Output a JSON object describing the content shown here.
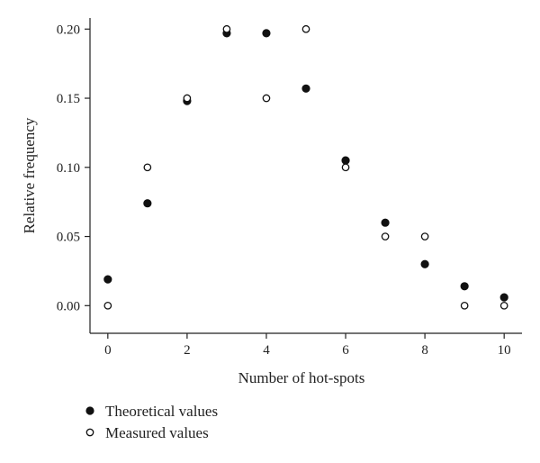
{
  "chart_data": {
    "type": "scatter",
    "title": "",
    "xlabel": "Number of hot-spots",
    "ylabel": "Relative frequency",
    "xlim": [
      -0.45,
      10.45
    ],
    "ylim": [
      -0.02,
      0.208
    ],
    "xticks": [
      0,
      2,
      4,
      6,
      8,
      10
    ],
    "yticks": [
      0.0,
      0.05,
      0.1,
      0.15,
      0.2
    ],
    "xtick_labels": [
      "0",
      "2",
      "4",
      "6",
      "8",
      "10"
    ],
    "ytick_labels": [
      "0.00",
      "0.05",
      "0.10",
      "0.15",
      "0.20"
    ],
    "grid": false,
    "legend_position": "bottom-left",
    "series": [
      {
        "name": "Theoretical values",
        "marker": "filled-circle",
        "color": "#111111",
        "x": [
          0,
          1,
          2,
          3,
          4,
          5,
          6,
          7,
          8,
          9,
          10
        ],
        "y": [
          0.019,
          0.074,
          0.148,
          0.197,
          0.197,
          0.157,
          0.105,
          0.06,
          0.03,
          0.014,
          0.006
        ]
      },
      {
        "name": "Measured values",
        "marker": "open-circle",
        "color": "#111111",
        "x": [
          0,
          1,
          2,
          3,
          4,
          5,
          6,
          7,
          8,
          9,
          10
        ],
        "y": [
          0.0,
          0.1,
          0.15,
          0.2,
          0.15,
          0.2,
          0.1,
          0.05,
          0.05,
          0.0,
          0.0
        ]
      }
    ]
  }
}
